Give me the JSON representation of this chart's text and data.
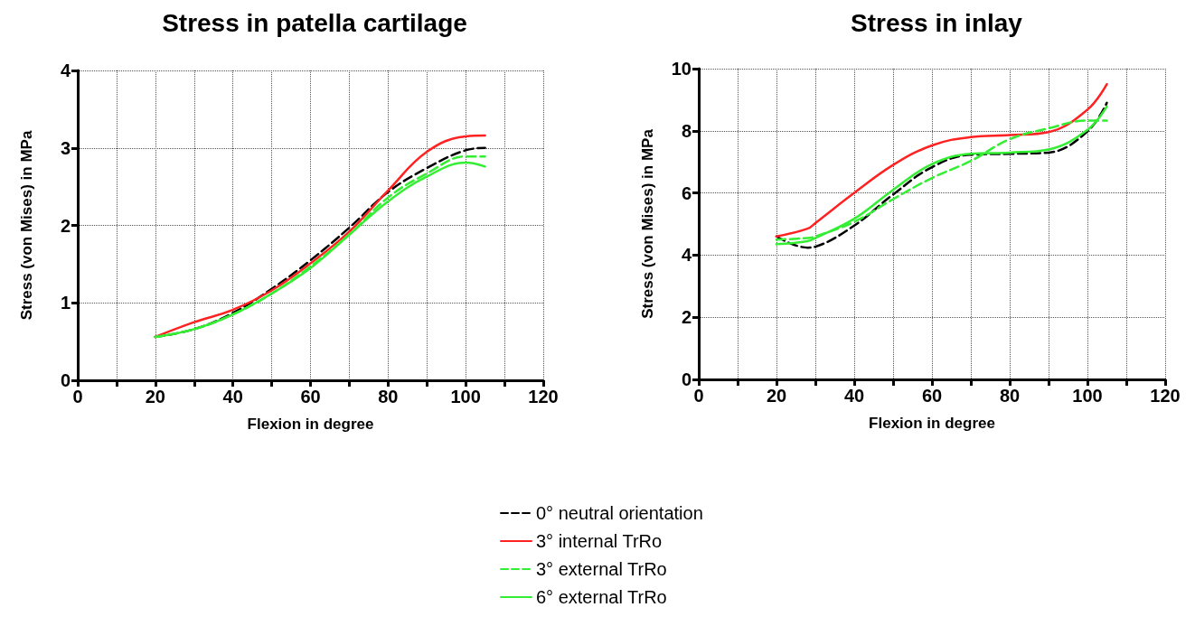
{
  "chart_data": [
    {
      "type": "line",
      "title": "Stress in patella cartilage",
      "xlabel": "Flexion in degree",
      "ylabel": "Stress (von Mises) in MPa",
      "x": [
        20,
        30,
        40,
        50,
        60,
        70,
        80,
        90,
        100,
        105
      ],
      "series": [
        {
          "name": "0° neutral orientation",
          "color": "#000000",
          "line_style": "dashed",
          "values": [
            0.56,
            0.66,
            0.87,
            1.18,
            1.55,
            1.97,
            2.43,
            2.74,
            2.97,
            3.0
          ]
        },
        {
          "name": "3° internal TrRo",
          "color": "#ff2222",
          "line_style": "solid",
          "values": [
            0.56,
            0.75,
            0.91,
            1.16,
            1.51,
            1.92,
            2.45,
            2.95,
            3.15,
            3.16
          ]
        },
        {
          "name": "3° external TrRo",
          "color": "#33ee33",
          "line_style": "dashed",
          "values": [
            0.56,
            0.66,
            0.85,
            1.12,
            1.47,
            1.88,
            2.36,
            2.67,
            2.89,
            2.89
          ]
        },
        {
          "name": "6° external TrRo",
          "color": "#33ee33",
          "line_style": "solid",
          "values": [
            0.56,
            0.66,
            0.85,
            1.12,
            1.45,
            1.88,
            2.31,
            2.63,
            2.81,
            2.76
          ]
        }
      ],
      "xlim": [
        0,
        120
      ],
      "xticks": [
        0,
        {
          "value": 10,
          "label": null
        },
        20,
        {
          "value": 30,
          "label": null
        },
        40,
        {
          "value": 50,
          "label": null
        },
        60,
        {
          "value": 70,
          "label": null
        },
        80,
        {
          "value": 90,
          "label": null
        },
        100,
        {
          "value": 110,
          "label": null
        },
        120
      ],
      "ylim": [
        0,
        4
      ],
      "yticks": [
        0,
        1,
        2,
        3,
        4
      ],
      "grid": true,
      "legend": "bottom",
      "marker": "none"
    },
    {
      "type": "line",
      "title": "Stress in inlay",
      "xlabel": "Flexion in degree",
      "ylabel": "Stress (von Mises) in MPa",
      "x": [
        20,
        28,
        30,
        40,
        50,
        60,
        70,
        80,
        90,
        100,
        105
      ],
      "series": [
        {
          "color": "#000000",
          "line_style": "dashed",
          "values": [
            4.6,
            4.24,
            4.27,
            4.95,
            5.95,
            6.83,
            7.23,
            7.26,
            7.3,
            7.98,
            8.9
          ]
        },
        {
          "color": "#ff2222",
          "line_style": "solid",
          "values": [
            4.6,
            4.85,
            5.03,
            6.0,
            6.9,
            7.53,
            7.8,
            7.86,
            7.96,
            8.68,
            9.5
          ]
        },
        {
          "color": "#33ee33",
          "line_style": "dashed",
          "values": [
            4.5,
            4.55,
            4.6,
            5.07,
            5.8,
            6.48,
            7.03,
            7.73,
            8.08,
            8.33,
            8.33
          ]
        },
        {
          "color": "#33ee33",
          "line_style": "solid",
          "values": [
            4.35,
            4.45,
            4.55,
            5.17,
            6.1,
            6.93,
            7.26,
            7.3,
            7.4,
            8.03,
            8.78
          ]
        }
      ],
      "xlim": [
        0,
        120
      ],
      "xticks": [
        0,
        {
          "value": 10,
          "label": null
        },
        20,
        {
          "value": 30,
          "label": null
        },
        40,
        {
          "value": 50,
          "label": null
        },
        60,
        {
          "value": 70,
          "label": null
        },
        80,
        {
          "value": 90,
          "label": null
        },
        100,
        {
          "value": 110,
          "label": null
        },
        120
      ],
      "ylim": [
        0,
        10
      ],
      "yticks": [
        0,
        2,
        4,
        6,
        8,
        10
      ],
      "grid": true,
      "marker": "none"
    }
  ]
}
